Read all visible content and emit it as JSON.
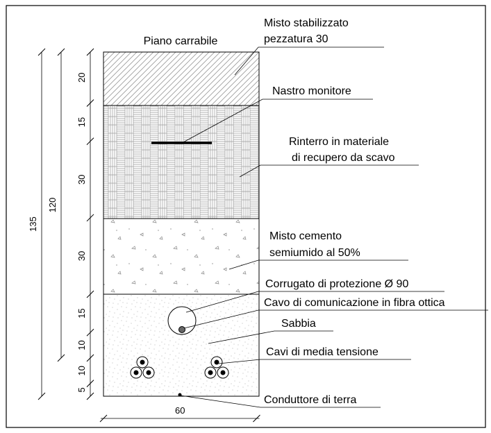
{
  "title": "Piano carrabile",
  "labels": [
    "Misto stabilizzato",
    "pezzatura 30",
    "Nastro monitore",
    "Rinterro in materiale",
    "di recupero da scavo",
    "Misto cemento",
    "semiumido al 50%",
    "Corrugato di protezione Ø 90",
    "Cavo di comunicazione in fibra ottica",
    "Sabbia",
    "Cavi di media tensione",
    "Conduttore di terra"
  ],
  "dimensions": {
    "chain": [
      20,
      15,
      30,
      30,
      15,
      10,
      10,
      5
    ],
    "total": 135,
    "partial": 120,
    "width": 60
  }
}
